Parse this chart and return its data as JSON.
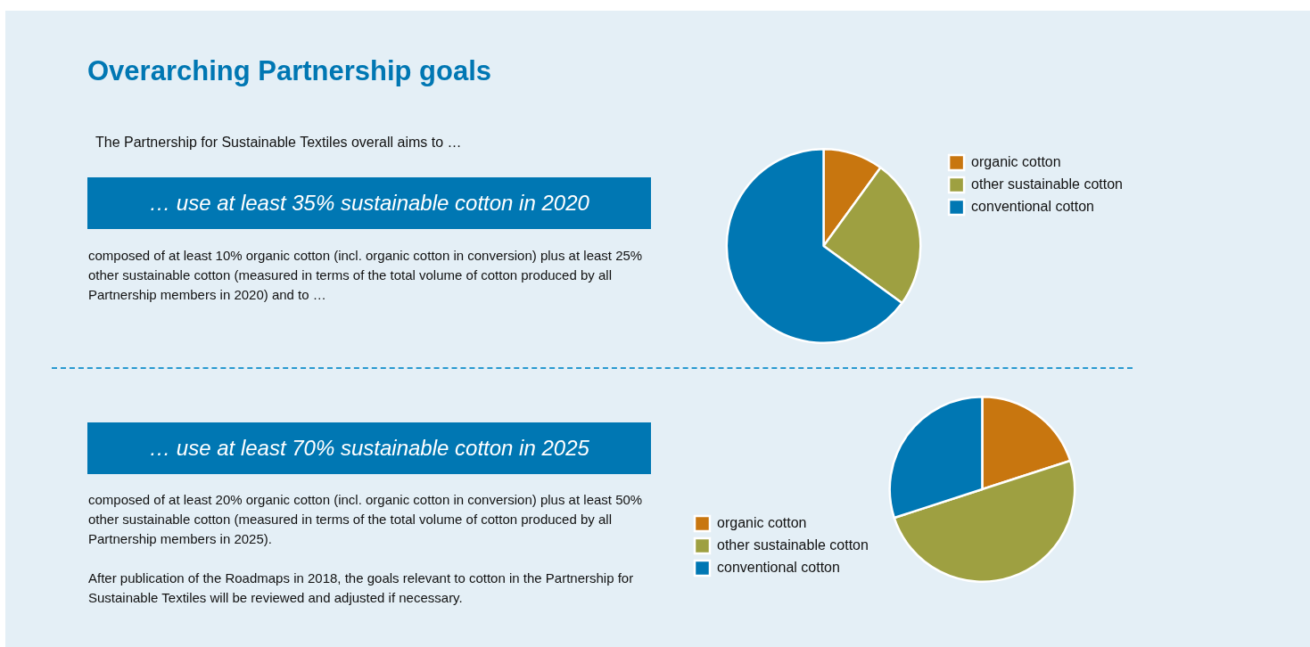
{
  "chart_data": [
    {
      "type": "pie",
      "title": "Overarching Partnership goals",
      "subtitle": "… use at least 35% sustainable cotton in 2020",
      "annotations": [
        "The Partnership for Sustainable Textiles overall aims to …",
        "composed of at least 10% organic cotton (incl. organic cotton in conversion) plus at least 25% other sustainable cotton (measured in terms of the total volume of cotton produced by all Partnership members in 2020) and to …"
      ],
      "categories": [
        "organic cotton",
        "other sustainable cotton",
        "conventional cotton"
      ],
      "values": [
        10,
        25,
        65
      ],
      "colors": [
        "#c8760f",
        "#9ea041",
        "#0077b3"
      ],
      "legend": "right"
    },
    {
      "type": "pie",
      "subtitle": "… use at least 70% sustainable cotton in 2025",
      "annotations": [
        "composed of at least 20% organic cotton (incl. organic cotton in conversion) plus at least 50% other sustainable cotton (measured in terms of the total volume of cotton produced by all Partnership members in 2025).",
        "After publication of the Roadmaps in 2018, the goals relevant to cotton in the Partnership for Sustainable Textiles will be reviewed and adjusted if necessary."
      ],
      "categories": [
        "organic cotton",
        "other sustainable cotton",
        "conventional cotton"
      ],
      "values": [
        20,
        50,
        30
      ],
      "colors": [
        "#c8760f",
        "#9ea041",
        "#0077b3"
      ],
      "legend": "bottom left"
    }
  ]
}
